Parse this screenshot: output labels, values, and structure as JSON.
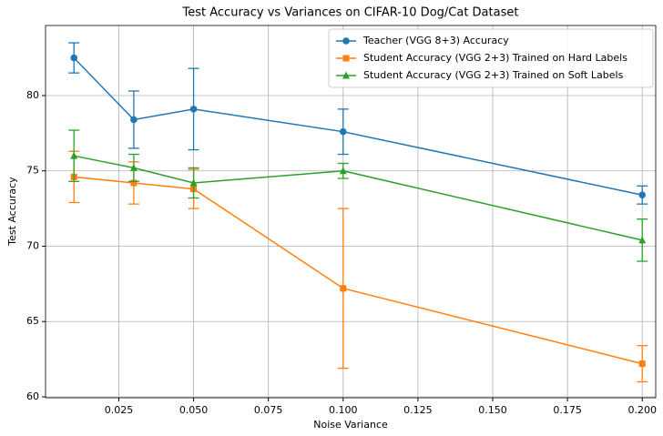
{
  "chart_data": {
    "type": "line",
    "title": "Test Accuracy vs Variances on CIFAR-10 Dog/Cat Dataset",
    "x_label": "Noise Variance",
    "y_label": "Test Accuracy",
    "x": [
      0.01,
      0.03,
      0.05,
      0.1,
      0.2
    ],
    "series": [
      {
        "name": "Teacher (VGG 8+3) Accuracy",
        "color": "#1f77b4",
        "marker": "circle",
        "values": [
          82.5,
          78.4,
          79.1,
          77.6,
          73.4
        ],
        "errors": [
          1.0,
          1.9,
          2.7,
          1.5,
          0.6
        ]
      },
      {
        "name": "Student Accuracy (VGG 2+3) Trained on Hard Labels",
        "color": "#ff7f0e",
        "marker": "square",
        "values": [
          74.6,
          74.2,
          73.8,
          67.2,
          62.2
        ],
        "errors": [
          1.7,
          1.4,
          1.3,
          5.3,
          1.2
        ]
      },
      {
        "name": "Student Accuracy (VGG 2+3) Trained on Soft Labels",
        "color": "#2ca02c",
        "marker": "triangle",
        "values": [
          76.0,
          75.2,
          74.2,
          75.0,
          70.4
        ],
        "errors": [
          1.7,
          0.9,
          1.0,
          0.5,
          1.4
        ]
      }
    ],
    "xlim": [
      0.0005,
      0.2045
    ],
    "ylim": [
      59.94,
      84.65
    ],
    "xticks": [
      0.025,
      {
        "value": 0.05,
        "label": "0.050"
      },
      0.075,
      {
        "value": 0.1,
        "label": "0.100"
      },
      0.125,
      {
        "value": 0.15,
        "label": "0.150"
      },
      0.175,
      {
        "value": 0.2,
        "label": "0.200"
      }
    ],
    "yticks": [
      60,
      65,
      70,
      75,
      80
    ],
    "grid": true,
    "legend": "upper right"
  }
}
